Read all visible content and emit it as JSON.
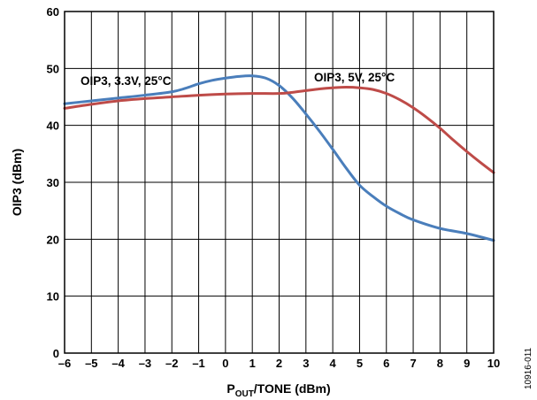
{
  "chart_data": {
    "type": "line",
    "xlabel_main": "P",
    "xlabel_sub": "OUT",
    "xlabel_rest": "/TONE (dBm)",
    "ylabel": "OIP3 (dBm)",
    "xlim": [
      -6,
      10
    ],
    "ylim": [
      0,
      60
    ],
    "xticks": [
      -6,
      -5,
      -4,
      -3,
      -2,
      -1,
      0,
      1,
      2,
      3,
      4,
      5,
      6,
      7,
      8,
      9,
      10
    ],
    "yticks": [
      0,
      10,
      20,
      30,
      40,
      50,
      60
    ],
    "xtick_labels": [
      "–6",
      "–5",
      "–4",
      "–3",
      "–2",
      "–1",
      "0",
      "1",
      "2",
      "3",
      "4",
      "5",
      "6",
      "7",
      "8",
      "9",
      "10"
    ],
    "ytick_labels": [
      "0",
      "10",
      "20",
      "30",
      "40",
      "50",
      "60"
    ],
    "grid": true,
    "series": [
      {
        "name": "OIP3, 3.3V, 25°C",
        "color": "#4a7ebb",
        "x": [
          -6,
          -5,
          -4,
          -3,
          -2,
          -1.5,
          -1,
          -0.5,
          0,
          0.5,
          1,
          1.5,
          2,
          2.5,
          3,
          3.5,
          4,
          4.5,
          5,
          5.5,
          6,
          6.5,
          7,
          8,
          9,
          10
        ],
        "y": [
          43.8,
          44.3,
          44.8,
          45.3,
          45.9,
          46.5,
          47.3,
          47.9,
          48.3,
          48.6,
          48.7,
          48.3,
          47.0,
          44.8,
          42.0,
          39.0,
          35.8,
          32.5,
          29.5,
          27.5,
          25.8,
          24.5,
          23.4,
          21.9,
          21.0,
          19.8
        ]
      },
      {
        "name": "OIP3, 5V, 25°C",
        "color": "#be4b48",
        "x": [
          -6,
          -5,
          -4,
          -3,
          -2,
          -1,
          0,
          1,
          2,
          2.5,
          3,
          3.5,
          4,
          4.5,
          5,
          5.5,
          6,
          6.5,
          7,
          7.5,
          8,
          8.5,
          9,
          9.5,
          10
        ],
        "y": [
          43.0,
          43.7,
          44.3,
          44.7,
          45.0,
          45.3,
          45.5,
          45.6,
          45.6,
          45.8,
          46.1,
          46.4,
          46.6,
          46.7,
          46.6,
          46.3,
          45.6,
          44.5,
          43.1,
          41.4,
          39.5,
          37.4,
          35.4,
          33.5,
          31.7
        ]
      }
    ],
    "annotations": [
      "OIP3, 3.3V, 25°C",
      "OIP3, 5V, 25°C"
    ],
    "figure_id": "10916-011"
  }
}
